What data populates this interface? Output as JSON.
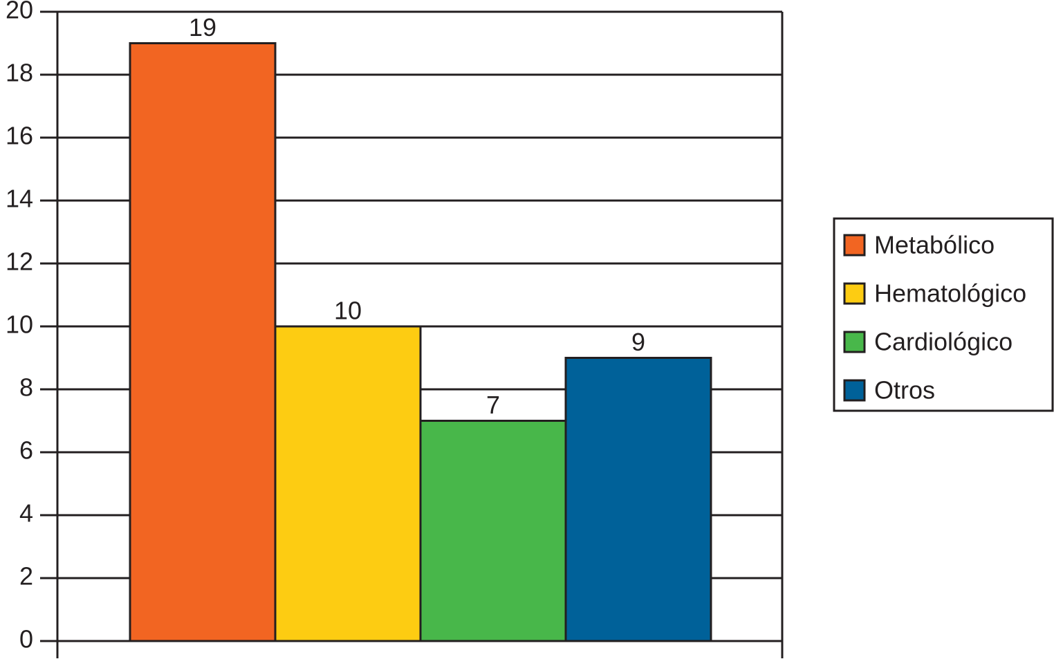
{
  "chart_data": {
    "type": "bar",
    "series": [
      {
        "name": "Metabólico",
        "color": "#f26522",
        "values": [
          19
        ]
      },
      {
        "name": "Hematológico",
        "color": "#fdcc12",
        "values": [
          10
        ]
      },
      {
        "name": "Cardiológico",
        "color": "#48b74a",
        "values": [
          7
        ]
      },
      {
        "name": "Otros",
        "color": "#006199",
        "values": [
          9
        ]
      }
    ],
    "ylim": [
      0,
      20
    ],
    "yticks": [
      0,
      2,
      4,
      6,
      8,
      10,
      12,
      14,
      16,
      18,
      20
    ],
    "grid": true,
    "legend": "right"
  }
}
